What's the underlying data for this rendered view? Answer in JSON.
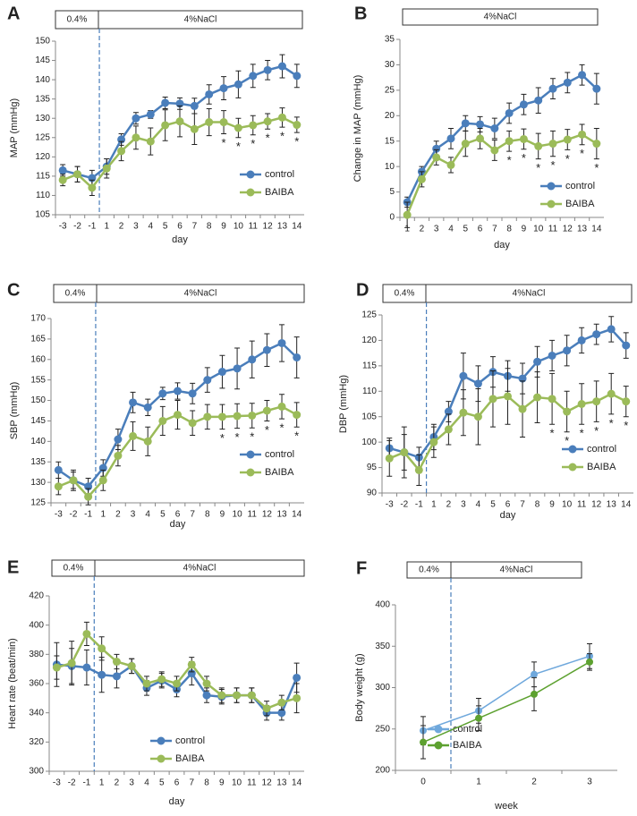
{
  "chart_data": [
    {
      "type": "line",
      "label": "A",
      "phases": [
        "0.4%",
        "4%NaCl"
      ],
      "y_label": "MAP (mmHg)",
      "x_label": "day",
      "categories": [
        "-3",
        "-2",
        "-1",
        "1",
        "2",
        "3",
        "4",
        "5",
        "6",
        "7",
        "8",
        "9",
        "10",
        "11",
        "12",
        "13",
        "14"
      ],
      "ylim": [
        105,
        150
      ],
      "yticks": [
        105,
        110,
        115,
        120,
        125,
        130,
        135,
        140,
        145,
        150
      ],
      "legend": "lower right",
      "series": [
        {
          "name": "control",
          "color": "#4a7ebb",
          "values": [
            116.5,
            115.5,
            114.5,
            117.5,
            124.5,
            130,
            131,
            134,
            133.8,
            133.2,
            136.2,
            137.8,
            138.8,
            141,
            142.5,
            143.5,
            141
          ],
          "errors": [
            1.5,
            2,
            2,
            2,
            1.5,
            1.5,
            1,
            1.5,
            1.5,
            2,
            2.5,
            3,
            3.5,
            3,
            2.5,
            3,
            3
          ]
        },
        {
          "name": "BAIBA",
          "color": "#9bbb59",
          "values": [
            114,
            115.5,
            112,
            117,
            121.5,
            125,
            124,
            128.2,
            129.2,
            127.2,
            129,
            129,
            127.5,
            128.2,
            129.2,
            130.2,
            128.3
          ],
          "errors": [
            1.5,
            2,
            2,
            2.5,
            2.5,
            3,
            3.5,
            4,
            4,
            4,
            3.5,
            3,
            2.5,
            2.5,
            2,
            2.5,
            2
          ]
        }
      ],
      "annotations": [
        {
          "text": "*",
          "x": "9"
        },
        {
          "text": "*",
          "x": "10"
        },
        {
          "text": "*",
          "x": "11"
        },
        {
          "text": "*",
          "x": "12"
        },
        {
          "text": "*",
          "x": "13"
        },
        {
          "text": "*",
          "x": "14"
        }
      ]
    },
    {
      "type": "line",
      "label": "B",
      "phases": [
        "4%NaCl"
      ],
      "y_label": "Change in MAP (mmHg)",
      "x_label": "day",
      "categories": [
        "1",
        "2",
        "3",
        "4",
        "5",
        "6",
        "7",
        "8",
        "9",
        "10",
        "11",
        "12",
        "13",
        "14"
      ],
      "ylim": [
        0,
        35
      ],
      "yticks": [
        0,
        5,
        10,
        15,
        20,
        25,
        30,
        35
      ],
      "legend": "lower right",
      "series": [
        {
          "name": "control",
          "color": "#4a7ebb",
          "values": [
            3,
            9,
            13.5,
            15.5,
            18.5,
            18.3,
            17.5,
            20.5,
            22.2,
            23,
            25.3,
            26.5,
            28,
            25.3
          ],
          "errors": [
            1,
            1,
            1.5,
            2,
            1.5,
            1.5,
            2,
            2,
            2,
            2.5,
            2,
            2,
            2,
            3
          ]
        },
        {
          "name": "BAIBA",
          "color": "#9bbb59",
          "values": [
            0.5,
            7.5,
            11.8,
            10.3,
            14.5,
            15.5,
            13.2,
            15,
            15.4,
            14,
            14.5,
            15.3,
            16.3,
            14.5
          ],
          "errors": [
            2.5,
            1.5,
            1.5,
            1.5,
            2.5,
            2,
            2,
            2,
            2,
            2.5,
            2.5,
            2,
            2,
            3
          ]
        }
      ],
      "annotations": [
        {
          "text": "*",
          "x": "8"
        },
        {
          "text": "*",
          "x": "9"
        },
        {
          "text": "*",
          "x": "10"
        },
        {
          "text": "*",
          "x": "11"
        },
        {
          "text": "*",
          "x": "12"
        },
        {
          "text": "*",
          "x": "13"
        },
        {
          "text": "*",
          "x": "14"
        }
      ]
    },
    {
      "type": "line",
      "label": "C",
      "phases": [
        "0.4%",
        "4%NaCl"
      ],
      "y_label": "SBP (mmHg)",
      "x_label": "day",
      "categories": [
        "-3",
        "-2",
        "-1",
        "1",
        "2",
        "3",
        "4",
        "5",
        "6",
        "7",
        "8",
        "9",
        "10",
        "11",
        "12",
        "13",
        "14"
      ],
      "ylim": [
        125,
        170
      ],
      "yticks": [
        125,
        130,
        135,
        140,
        145,
        150,
        155,
        160,
        165,
        170
      ],
      "legend": "lower right",
      "series": [
        {
          "name": "control",
          "color": "#4a7ebb",
          "values": [
            133,
            130.5,
            129,
            133.5,
            140.5,
            149.5,
            148.3,
            151.7,
            152.3,
            151.7,
            155,
            157,
            157.8,
            160,
            162.3,
            164,
            160.5
          ],
          "errors": [
            2,
            2,
            2,
            2,
            2.5,
            2.5,
            2,
            1.5,
            2,
            2.5,
            3,
            4,
            5,
            4.5,
            4,
            4.5,
            5
          ]
        },
        {
          "name": "BAIBA",
          "color": "#9bbb59",
          "values": [
            129,
            130.5,
            126.5,
            130.5,
            136.5,
            141.3,
            140,
            145,
            146.5,
            144.5,
            146,
            146,
            146.2,
            146.3,
            147.5,
            148.5,
            146.5
          ],
          "errors": [
            2,
            2.5,
            2,
            2.5,
            2.5,
            3.5,
            3.5,
            3.5,
            3.5,
            3,
            3,
            3,
            3,
            3,
            2.5,
            3,
            3
          ]
        }
      ],
      "annotations": [
        {
          "text": "*",
          "x": "9"
        },
        {
          "text": "*",
          "x": "10"
        },
        {
          "text": "*",
          "x": "11"
        },
        {
          "text": "*",
          "x": "12"
        },
        {
          "text": "*",
          "x": "13"
        },
        {
          "text": "*",
          "x": "14"
        }
      ]
    },
    {
      "type": "line",
      "label": "D",
      "phases": [
        "0.4%",
        "4%NaCl"
      ],
      "y_label": "DBP (mmHg)",
      "x_label": "day",
      "categories": [
        "-3",
        "-2",
        "-1",
        "1",
        "2",
        "3",
        "4",
        "5",
        "6",
        "7",
        "8",
        "9",
        "10",
        "11",
        "12",
        "13",
        "14"
      ],
      "ylim": [
        90,
        125
      ],
      "yticks": [
        90,
        95,
        100,
        105,
        110,
        115,
        120,
        125
      ],
      "legend": "lower right",
      "series": [
        {
          "name": "control",
          "color": "#4a7ebb",
          "values": [
            98.8,
            98,
            97,
            101,
            106,
            113,
            111.5,
            113.8,
            113,
            112.5,
            115.8,
            117,
            118,
            120,
            121.2,
            122.2,
            119
          ],
          "errors": [
            2,
            5,
            2,
            2.5,
            2,
            4.5,
            3.5,
            3,
            3,
            3,
            3,
            3,
            3,
            2.5,
            2,
            2.5,
            2.5
          ]
        },
        {
          "name": "BAIBA",
          "color": "#9bbb59",
          "values": [
            96.8,
            98,
            94.5,
            100,
            102.5,
            105.8,
            105,
            108.5,
            109,
            106.5,
            108.8,
            108.5,
            106,
            107.5,
            108,
            109.5,
            108
          ],
          "errors": [
            3.5,
            3.5,
            3,
            3,
            3,
            4.5,
            5.5,
            5.5,
            5.5,
            5.5,
            5,
            5,
            4,
            4,
            4,
            4,
            3
          ]
        }
      ],
      "annotations": [
        {
          "text": "*",
          "x": "9"
        },
        {
          "text": "*",
          "x": "10"
        },
        {
          "text": "*",
          "x": "11"
        },
        {
          "text": "*",
          "x": "12"
        },
        {
          "text": "*",
          "x": "13"
        },
        {
          "text": "*",
          "x": "14"
        }
      ]
    },
    {
      "type": "line",
      "label": "E",
      "phases": [
        "0.4%",
        "4%NaCl"
      ],
      "y_label": "Heart rate (beat/min)",
      "x_label": "day",
      "categories": [
        "-3",
        "-2",
        "-1",
        "1",
        "2",
        "3",
        "4",
        "5",
        "6",
        "7",
        "8",
        "9",
        "10",
        "11",
        "12",
        "13",
        "14"
      ],
      "ylim": [
        300,
        420
      ],
      "yticks": [
        300,
        320,
        340,
        360,
        380,
        400,
        420
      ],
      "legend": "lower center",
      "series": [
        {
          "name": "control",
          "color": "#4a7ebb",
          "values": [
            373,
            372,
            371,
            366,
            365,
            372,
            357,
            362,
            356,
            367,
            352,
            351,
            352,
            352,
            340,
            340,
            364
          ],
          "errors": [
            15,
            12,
            12,
            12,
            8,
            5,
            5,
            5,
            5,
            8,
            5,
            5,
            5,
            5,
            5,
            5,
            10
          ]
        },
        {
          "name": "BAIBA",
          "color": "#9bbb59",
          "values": [
            371,
            374,
            394,
            384,
            375,
            372,
            360,
            363,
            360,
            373,
            360,
            352,
            352,
            352,
            343,
            347,
            350
          ],
          "errors": [
            8,
            15,
            8,
            8,
            5,
            5,
            5,
            5,
            5,
            5,
            5,
            5,
            5,
            5,
            5,
            5,
            10
          ]
        }
      ]
    },
    {
      "type": "line",
      "label": "F",
      "phases": [
        "0.4%",
        "4%NaCl"
      ],
      "y_label": "Body weight (g)",
      "x_label": "week",
      "categories": [
        "0",
        "1",
        "2",
        "3"
      ],
      "ylim": [
        200,
        400
      ],
      "yticks": [
        200,
        250,
        300,
        350,
        400
      ],
      "legend": "lower left",
      "series": [
        {
          "name": "control",
          "color": "#6fa8dc",
          "values": [
            248,
            272,
            316,
            338
          ],
          "errors": [
            17,
            15,
            15,
            15
          ]
        },
        {
          "name": "BAIBA",
          "color": "#5da130",
          "values": [
            234,
            263,
            292,
            331
          ],
          "errors": [
            20,
            15,
            20,
            10
          ]
        }
      ]
    }
  ]
}
